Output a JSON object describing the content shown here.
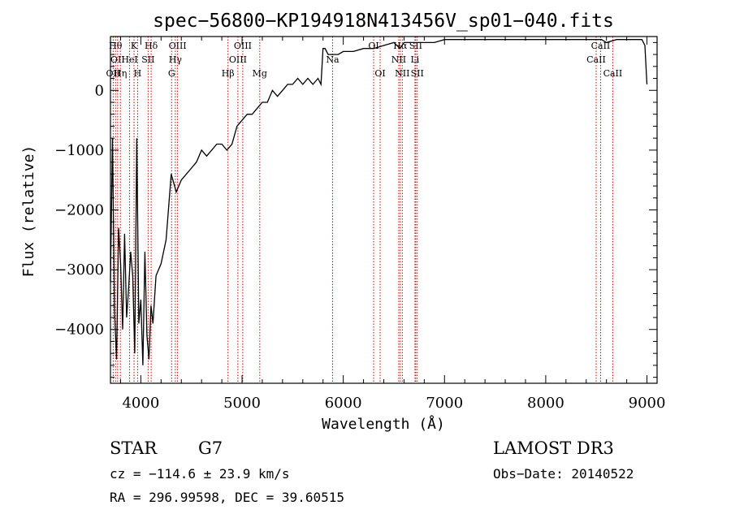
{
  "chart_data": {
    "type": "line",
    "title": "spec−56800−KP194918N413456V_sp01−040.fits",
    "xlabel": "Wavelength (Å)",
    "ylabel": "Flux (relative)",
    "xlim": [
      3700,
      9100
    ],
    "ylim": [
      -4900,
      900
    ],
    "xticks": [
      4000,
      5000,
      6000,
      7000,
      8000,
      9000
    ],
    "xtick_labels": [
      "4000",
      "5000",
      "6000",
      "7000",
      "8000",
      "9000"
    ],
    "yticks": [
      -4000,
      -3000,
      -2000,
      -1000,
      0
    ],
    "ytick_labels": [
      "−4000",
      "−3000",
      "−2000",
      "−1000",
      "0"
    ],
    "series": [
      {
        "x": [
          3700,
          3720,
          3740,
          3760,
          3780,
          3800,
          3820,
          3840,
          3860,
          3880,
          3900,
          3920,
          3940,
          3960,
          3980,
          4000,
          4020,
          4040,
          4060,
          4080,
          4100,
          4120,
          4150,
          4200,
          4250,
          4300,
          4350,
          4400,
          4450,
          4500,
          4550,
          4600,
          4650,
          4700,
          4750,
          4800,
          4850,
          4900,
          4950,
          5000,
          5050,
          5100,
          5150,
          5200,
          5250,
          5300,
          5350,
          5400,
          5450,
          5500,
          5550,
          5600,
          5650,
          5700,
          5750,
          5780,
          5800,
          5820,
          5850,
          5900,
          5950,
          6000,
          6100,
          6200,
          6300,
          6400,
          6500,
          6560,
          6600,
          6700,
          6800,
          6900,
          7000,
          7200,
          7400,
          7600,
          7800,
          8000,
          8200,
          8400,
          8500,
          8550,
          8600,
          8700,
          8800,
          8900,
          8950,
          8980,
          9000
        ],
        "y": [
          -3200,
          -800,
          -3700,
          -4500,
          -2300,
          -2900,
          -4000,
          -2400,
          -3800,
          -3300,
          -2700,
          -3100,
          -4400,
          -800,
          -3900,
          -3500,
          -4600,
          -2700,
          -4100,
          -4500,
          -3600,
          -3900,
          -3100,
          -2900,
          -2500,
          -1400,
          -1700,
          -1500,
          -1400,
          -1300,
          -1200,
          -1000,
          -1100,
          -1000,
          -900,
          -900,
          -1000,
          -900,
          -600,
          -500,
          -400,
          -400,
          -300,
          -200,
          -200,
          0,
          -100,
          0,
          100,
          100,
          200,
          100,
          200,
          100,
          200,
          100,
          700,
          700,
          600,
          600,
          600,
          650,
          650,
          700,
          700,
          750,
          800,
          700,
          800,
          800,
          800,
          800,
          850,
          850,
          850,
          850,
          850,
          850,
          850,
          850,
          850,
          850,
          800,
          850,
          850,
          850,
          850,
          750,
          100
        ]
      }
    ],
    "lines": [
      {
        "x": 3727,
        "label": "OII",
        "row": 2
      },
      {
        "x": 3750,
        "label": "Hθ",
        "row": 0
      },
      {
        "x": 3771,
        "label": "OII",
        "row": 1
      },
      {
        "x": 3798,
        "label": "Hη",
        "row": 2
      },
      {
        "x": 3889,
        "label": "HeI",
        "row": 1
      },
      {
        "x": 3933,
        "label": "K",
        "row": 0
      },
      {
        "x": 3968,
        "label": "H",
        "row": 2
      },
      {
        "x": 4072,
        "label": "SII",
        "row": 1
      },
      {
        "x": 4102,
        "label": "Hδ",
        "row": 0
      },
      {
        "x": 4304,
        "label": "G",
        "row": 2
      },
      {
        "x": 4341,
        "label": "Hγ",
        "row": 1
      },
      {
        "x": 4363,
        "label": "OIII",
        "row": 0
      },
      {
        "x": 4861,
        "label": "Hβ",
        "row": 2
      },
      {
        "x": 4959,
        "label": "OIII",
        "row": 1
      },
      {
        "x": 5007,
        "label": "OIII",
        "row": 0
      },
      {
        "x": 5175,
        "label": "Mg",
        "row": 2
      },
      {
        "x": 5894,
        "label": "Na",
        "row": 1
      },
      {
        "x": 6300,
        "label": "OI",
        "row": 0
      },
      {
        "x": 6364,
        "label": "OI",
        "row": 2
      },
      {
        "x": 6548,
        "label": "NII",
        "row": 1
      },
      {
        "x": 6563,
        "label": "Hα",
        "row": 0
      },
      {
        "x": 6583,
        "label": "NII",
        "row": 2
      },
      {
        "x": 6708,
        "label": "Li",
        "row": 1
      },
      {
        "x": 6716,
        "label": "SII",
        "row": 0
      },
      {
        "x": 6731,
        "label": "SII",
        "row": 2
      },
      {
        "x": 8498,
        "label": "CaII",
        "row": 1
      },
      {
        "x": 8542,
        "label": "CaII",
        "row": 0
      },
      {
        "x": 8662,
        "label": "CaII",
        "row": 2
      }
    ]
  },
  "info": {
    "class": "STAR",
    "subclass": "G7",
    "survey": "LAMOST DR3",
    "cz": "cz = −114.6 ± 23.9 km/s",
    "obs_date": "Obs−Date: 20140522",
    "radec": "RA = 296.99598, DEC =  39.60515"
  },
  "colors": {
    "spectrum": "#000000",
    "lines": "#cc0000"
  }
}
